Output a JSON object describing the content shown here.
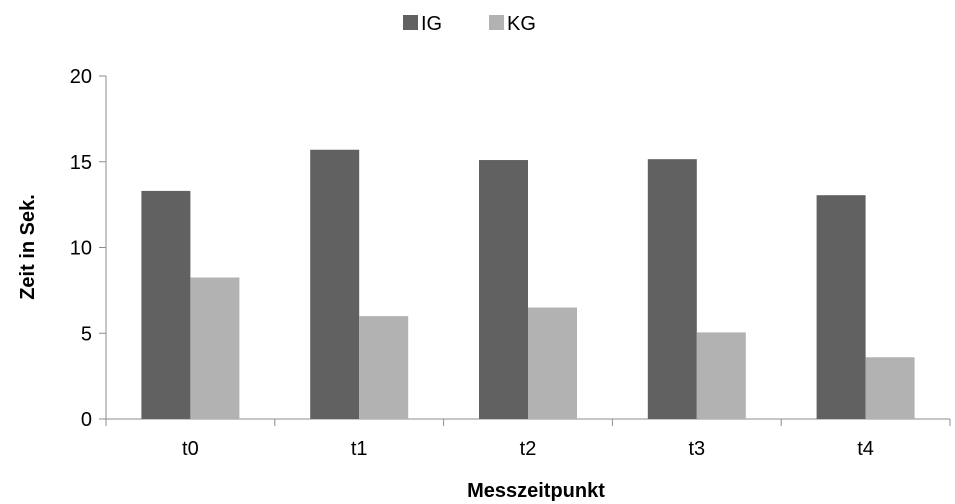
{
  "chart_data": {
    "type": "bar",
    "categories": [
      "t0",
      "t1",
      "t2",
      "t3",
      "t4"
    ],
    "series": [
      {
        "name": "IG",
        "values": [
          13.3,
          15.7,
          15.1,
          15.15,
          13.05
        ],
        "color": "#616161"
      },
      {
        "name": "KG",
        "values": [
          8.25,
          6.0,
          6.5,
          5.05,
          3.6
        ],
        "color": "#b2b2b2"
      }
    ],
    "xlabel": "Messzeitpunkt",
    "ylabel": "Zeit in Sek.",
    "ylim": [
      0,
      20
    ],
    "yticks": [
      0,
      5,
      10,
      15,
      20
    ],
    "grid": false,
    "legend_position": "top-center",
    "axis_color": "#8c8c8c"
  }
}
